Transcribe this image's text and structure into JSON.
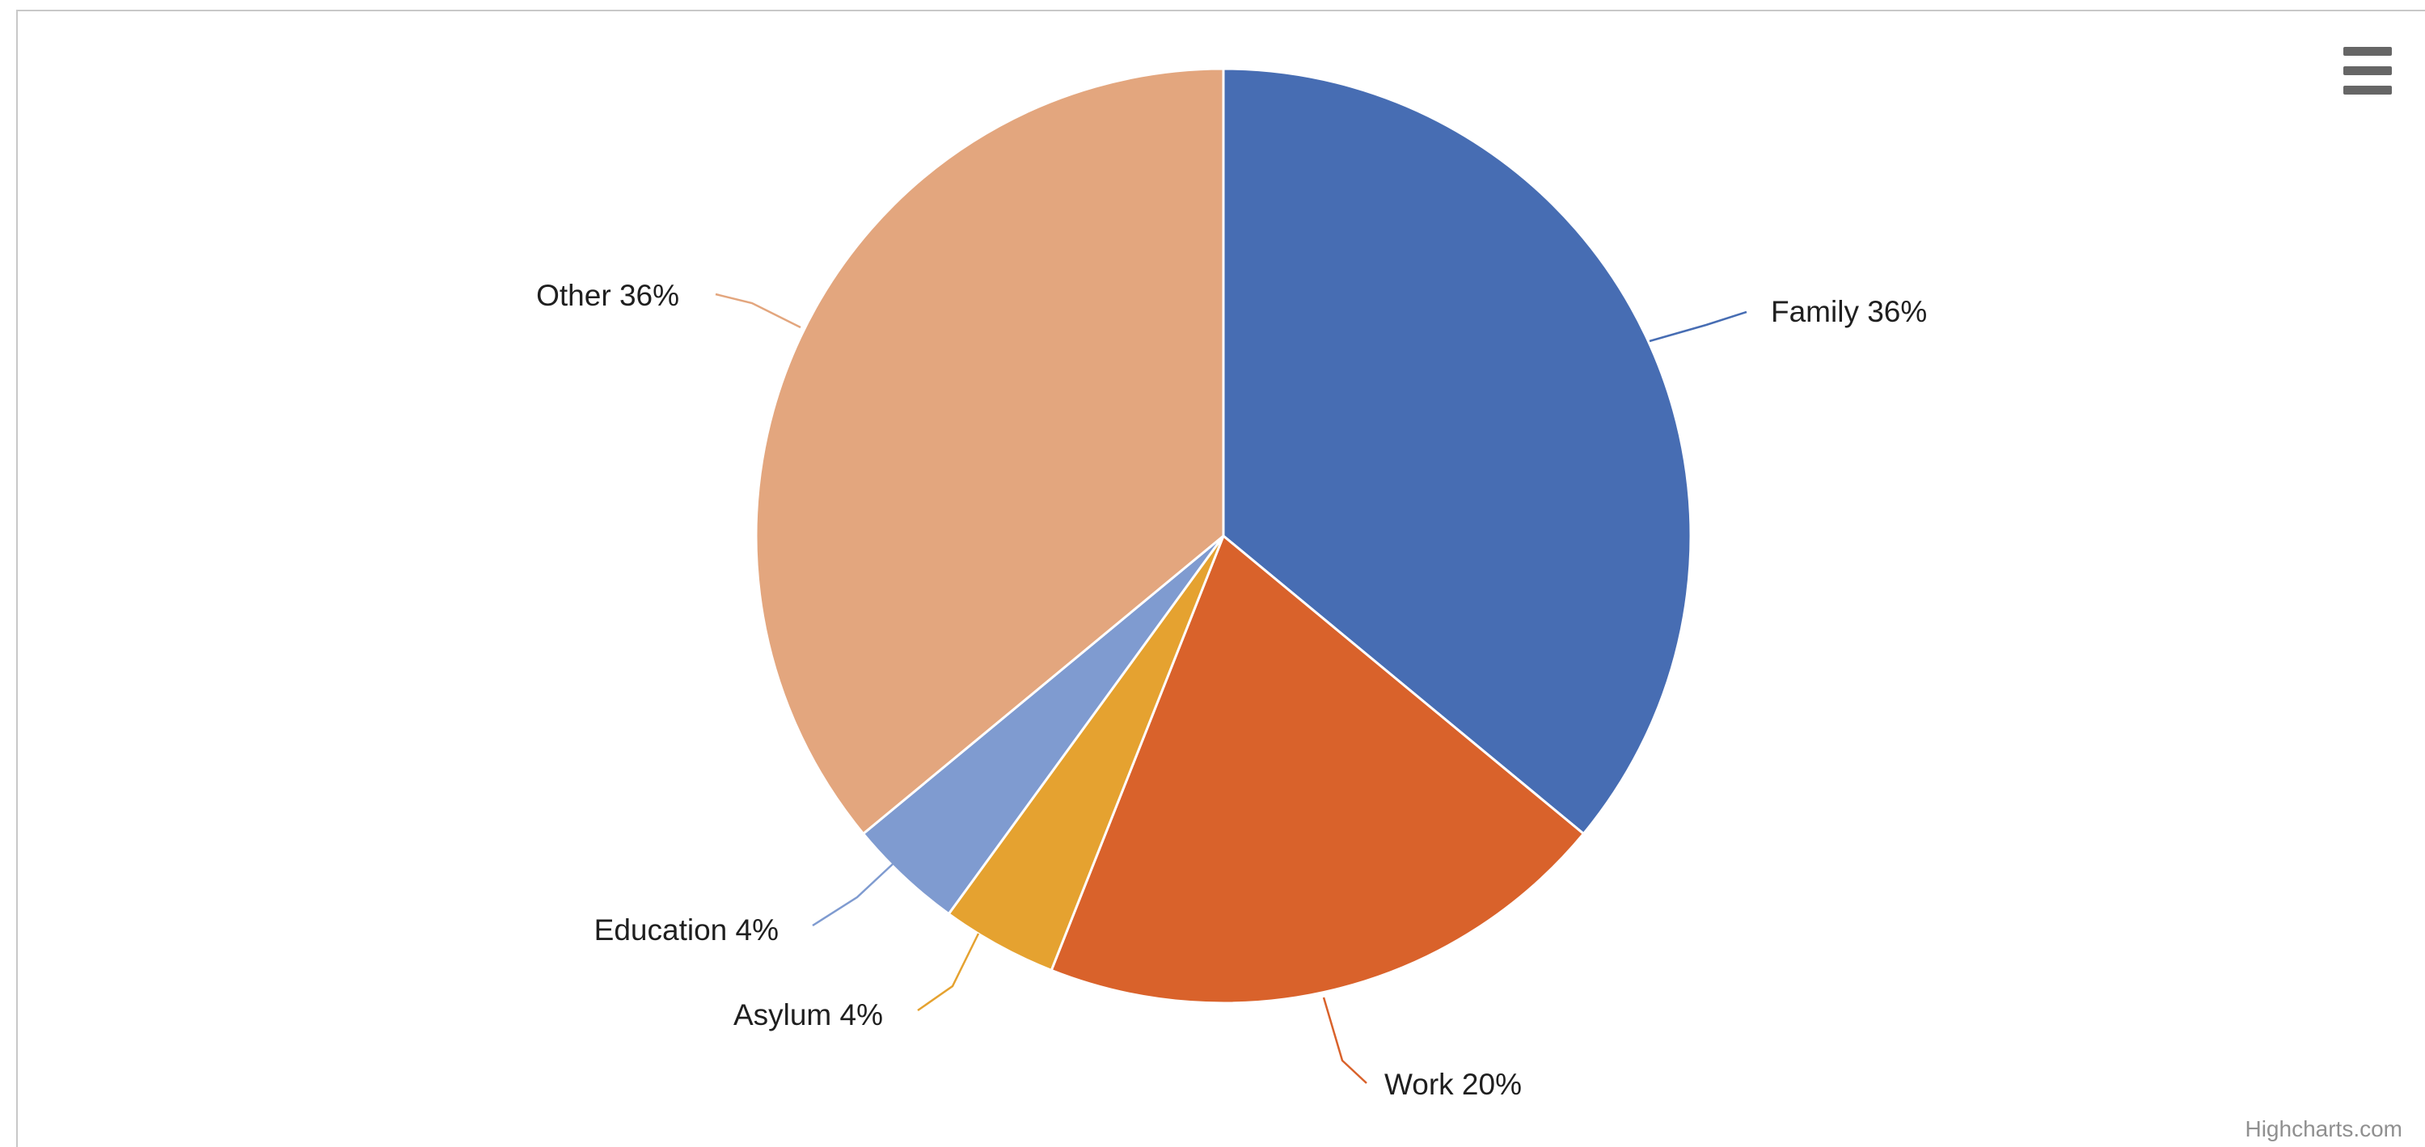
{
  "chart_data": {
    "type": "pie",
    "slices": [
      {
        "name": "Family",
        "value": 36,
        "label": "Family 36%",
        "color": "#476db3"
      },
      {
        "name": "Work",
        "value": 20,
        "label": "Work 20%",
        "color": "#d9622b"
      },
      {
        "name": "Asylum",
        "value": 4,
        "label": "Asylum 4%",
        "color": "#e5a230"
      },
      {
        "name": "Education",
        "value": 4,
        "label": "Education 4%",
        "color": "#7f9bd0"
      },
      {
        "name": "Other",
        "value": 36,
        "label": "Other 36%",
        "color": "#e3a67e"
      }
    ],
    "start": "top, clockwise",
    "unit": "%"
  },
  "menu": {
    "icon": "hamburger-menu-icon"
  },
  "credits": {
    "text": "Highcharts.com"
  }
}
